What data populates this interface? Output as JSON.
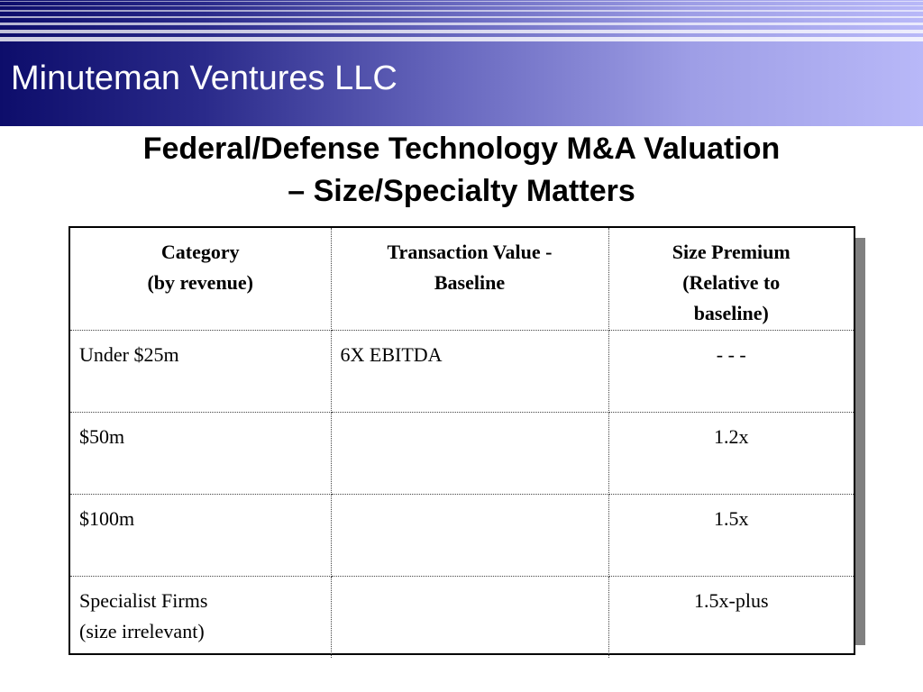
{
  "header": {
    "brand": "Minuteman Ventures LLC"
  },
  "slide": {
    "title_line1": "Federal/Defense Technology M&A Valuation",
    "title_line2": "– Size/Specialty Matters"
  },
  "table": {
    "headers": [
      {
        "line1": "Category",
        "line2": "(by revenue)",
        "line3": ""
      },
      {
        "line1": "Transaction Value -",
        "line2": "Baseline",
        "line3": ""
      },
      {
        "line1": "Size Premium",
        "line2": "(Relative to",
        "line3": "baseline)"
      }
    ],
    "rows": [
      {
        "category": "Under $25m",
        "category_note": "",
        "transaction_value": "6X EBITDA",
        "size_premium": "- - -"
      },
      {
        "category": "$50m",
        "category_note": "",
        "transaction_value": "",
        "size_premium": "1.2x"
      },
      {
        "category": "$100m",
        "category_note": "",
        "transaction_value": "",
        "size_premium": "1.5x"
      },
      {
        "category": "Specialist Firms",
        "category_note": "(size irrelevant)",
        "transaction_value": "",
        "size_premium": "1.5x-plus"
      }
    ]
  },
  "colors": {
    "header_dark": "#0d0d6b",
    "header_light": "#b8b8f8",
    "table_shadow": "#808080"
  }
}
